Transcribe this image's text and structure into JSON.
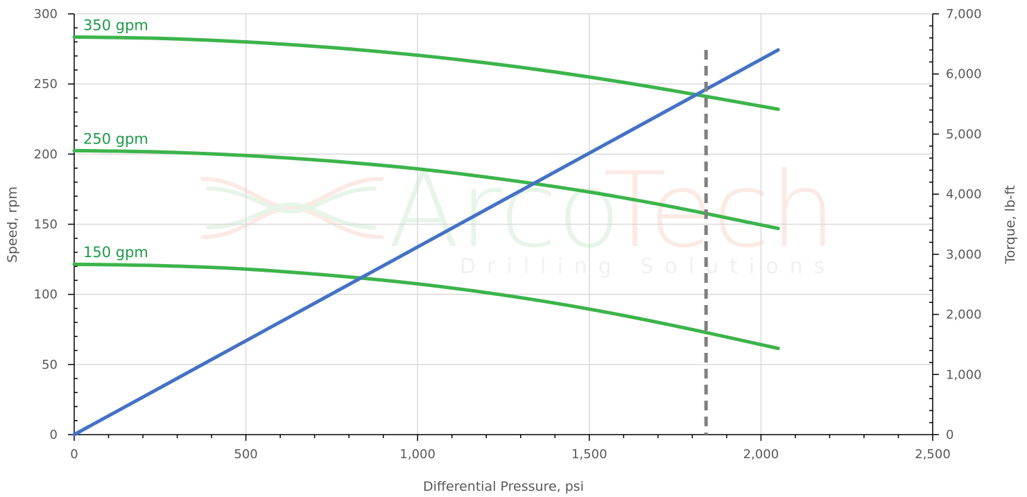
{
  "chart_data": {
    "type": "line",
    "xlabel": "Differential Pressure, psi",
    "ylabel": "Speed, rpm",
    "y2label": "Torque, lb-ft",
    "xlim": [
      0,
      2500
    ],
    "ylim": [
      0,
      300
    ],
    "y2lim": [
      0,
      7000
    ],
    "x_ticks": [
      "0",
      "500",
      "1,000",
      "1,500",
      "2,000",
      "2,500"
    ],
    "y_ticks": [
      "0",
      "50",
      "100",
      "150",
      "200",
      "250",
      "300"
    ],
    "y2_ticks": [
      "0",
      "1,000",
      "2,000",
      "3,000",
      "4,000",
      "5,000",
      "6,000",
      "7,000"
    ],
    "grid": true,
    "speed_series": [
      {
        "name": "350 gpm",
        "color": "#3cb44b",
        "x": [
          0,
          250,
          500,
          750,
          1000,
          1250,
          1500,
          1750,
          2050
        ],
        "y": [
          283.5,
          282.5,
          280,
          276,
          270.5,
          263.5,
          255,
          245,
          232
        ]
      },
      {
        "name": "250 gpm",
        "color": "#3cb44b",
        "x": [
          0,
          250,
          500,
          750,
          1000,
          1250,
          1500,
          1750,
          2050
        ],
        "y": [
          202.5,
          201.5,
          199,
          195,
          189.5,
          182,
          173,
          162,
          147
        ]
      },
      {
        "name": "150 gpm",
        "color": "#3cb44b",
        "x": [
          0,
          250,
          500,
          750,
          1000,
          1250,
          1500,
          1750,
          2050
        ],
        "y": [
          121.5,
          120.5,
          118,
          113.5,
          107.5,
          99.5,
          89.5,
          77.5,
          61.5
        ]
      }
    ],
    "torque_series": {
      "color": "#4472c4",
      "x": [
        0,
        2050
      ],
      "y": [
        0,
        6400
      ]
    },
    "marker_line": {
      "x": 1840,
      "color": "#7f7f7f",
      "style": "dashed"
    }
  },
  "watermark": {
    "brand": "ArcoTech",
    "tagline": "Drilling Solutions"
  }
}
